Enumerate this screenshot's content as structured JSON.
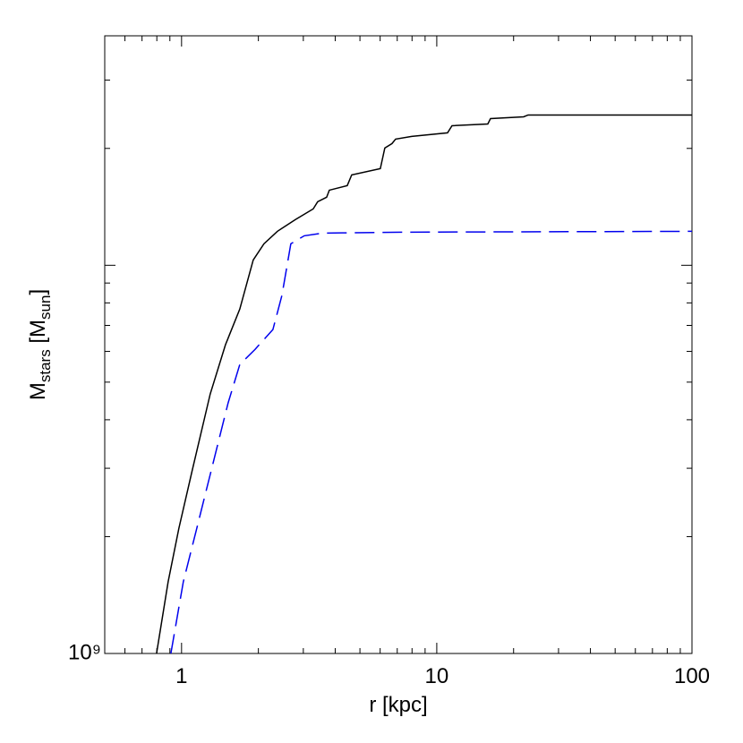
{
  "chart_data": {
    "type": "line",
    "xscale": "log",
    "yscale": "log",
    "xlabel": "r [kpc]",
    "ylabel_parts": [
      "M",
      "stars",
      " [M",
      "sun",
      "]"
    ],
    "xlim": [
      0.5,
      100
    ],
    "xticks": [
      1,
      10,
      100
    ],
    "ylim": [
      1000000000.0,
      39000000000.0
    ],
    "yticks": [
      {
        "value": 1000000000.0,
        "label": "10⁹"
      },
      {
        "value": 10000000000.0,
        "label": null
      }
    ],
    "series": [
      {
        "color": "#000000",
        "linestyle": "solid",
        "x": [
          0.798,
          0.886,
          0.976,
          1.102,
          1.295,
          1.486,
          1.691,
          1.909,
          2.103,
          2.374,
          2.79,
          3.28,
          3.415,
          3.702,
          3.793,
          4.459,
          4.642,
          6.009,
          6.258,
          6.677,
          6.897,
          7.976,
          11.02,
          11.47,
          15.85,
          16.24,
          21.9,
          22.8,
          37.02,
          100
        ],
        "values": [
          1000000000.0,
          1530000000.0,
          2100000000.0,
          2970000000.0,
          4660000000.0,
          6240000000.0,
          7710000000.0,
          10320000000.0,
          11360000000.0,
          12230000000.0,
          13110000000.0,
          13970000000.0,
          14580000000.0,
          14970000000.0,
          15610000000.0,
          16040000000.0,
          17090000000.0,
          17740000000.0,
          20040000000.0,
          20580000000.0,
          21130000000.0,
          21470000000.0,
          21930000000.0,
          22880000000.0,
          23120000000.0,
          23870000000.0,
          24120000000.0,
          24380000000.0,
          24380000000.0,
          24380000000.0
        ]
      },
      {
        "color": "#0000ee",
        "linestyle": "dashed",
        "x": [
          0.908,
          1.016,
          1.147,
          1.295,
          1.522,
          1.691,
          1.94,
          2.28,
          2.472,
          2.68,
          3.025,
          3.556,
          7.357,
          100
        ],
        "values": [
          1000000000.0,
          1530000000.0,
          2100000000.0,
          2890000000.0,
          4420000000.0,
          5550000000.0,
          6070000000.0,
          6830000000.0,
          8350000000.0,
          11360000000.0,
          11910000000.0,
          12100000000.0,
          12170000000.0,
          12230000000.0
        ]
      }
    ]
  }
}
